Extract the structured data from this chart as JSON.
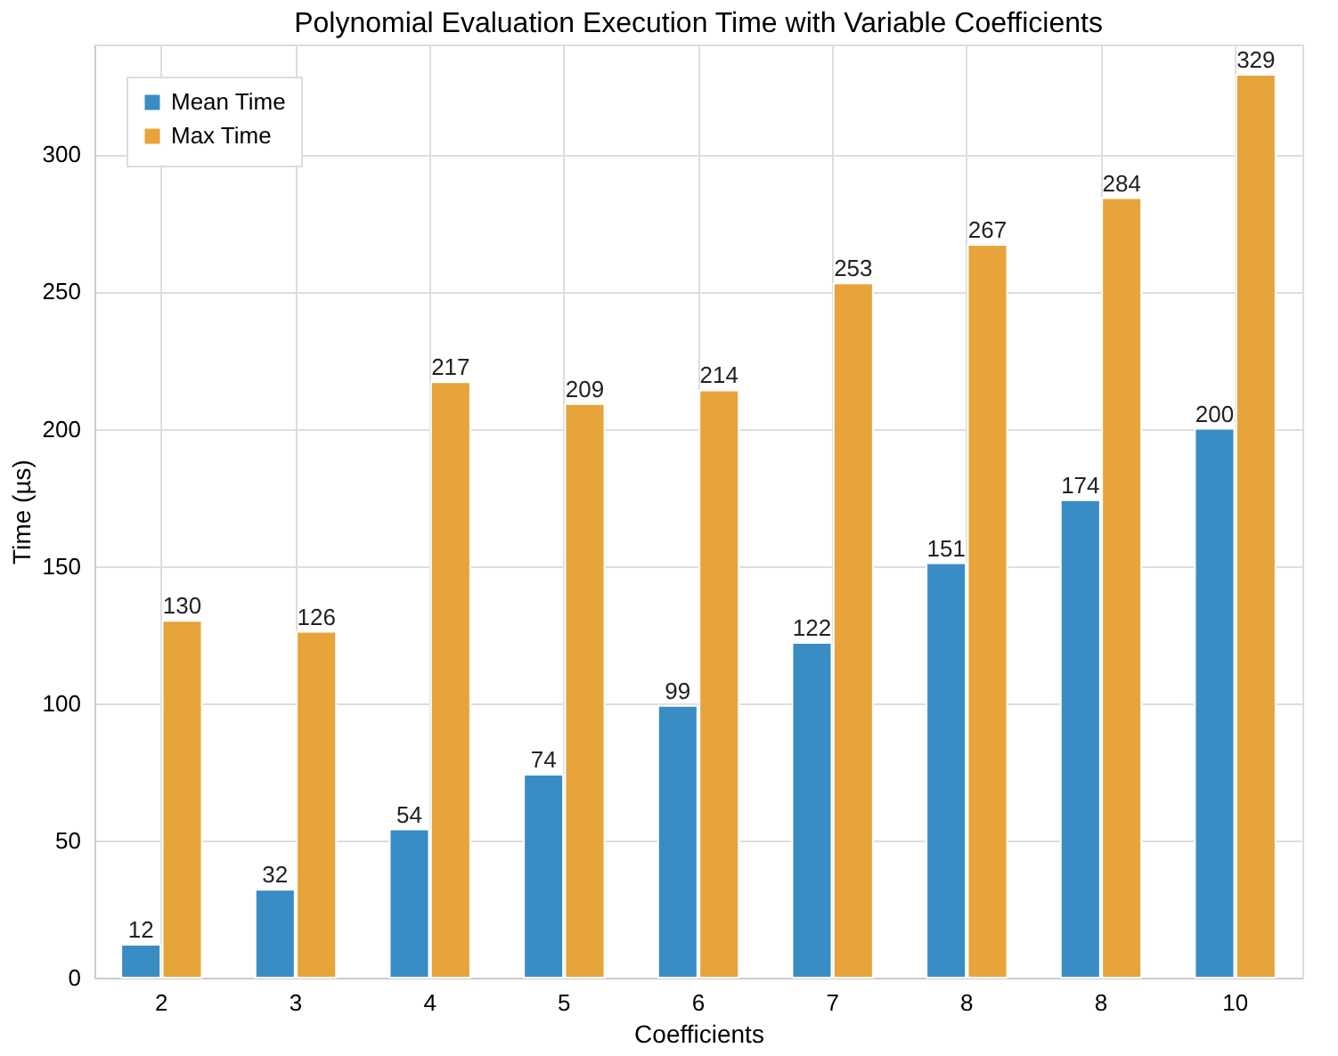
{
  "chart_data": {
    "type": "bar",
    "title": "Polynomial Evaluation Execution Time with Variable Coefficients",
    "xlabel": "Coefficients",
    "ylabel": "Time (µs)",
    "categories": [
      "2",
      "3",
      "4",
      "5",
      "6",
      "7",
      "8",
      "8",
      "10"
    ],
    "series": [
      {
        "name": "Mean Time",
        "color": "#3a8cc4",
        "values": [
          12,
          32,
          54,
          74,
          99,
          122,
          151,
          174,
          200
        ]
      },
      {
        "name": "Max Time",
        "color": "#e6a43a",
        "values": [
          130,
          126,
          217,
          209,
          214,
          253,
          267,
          284,
          329
        ]
      }
    ],
    "ylim": [
      0,
      340
    ],
    "yticks": [
      0,
      50,
      100,
      150,
      200,
      250,
      300
    ],
    "grid": true,
    "legend": "top left",
    "data_labels": true
  }
}
